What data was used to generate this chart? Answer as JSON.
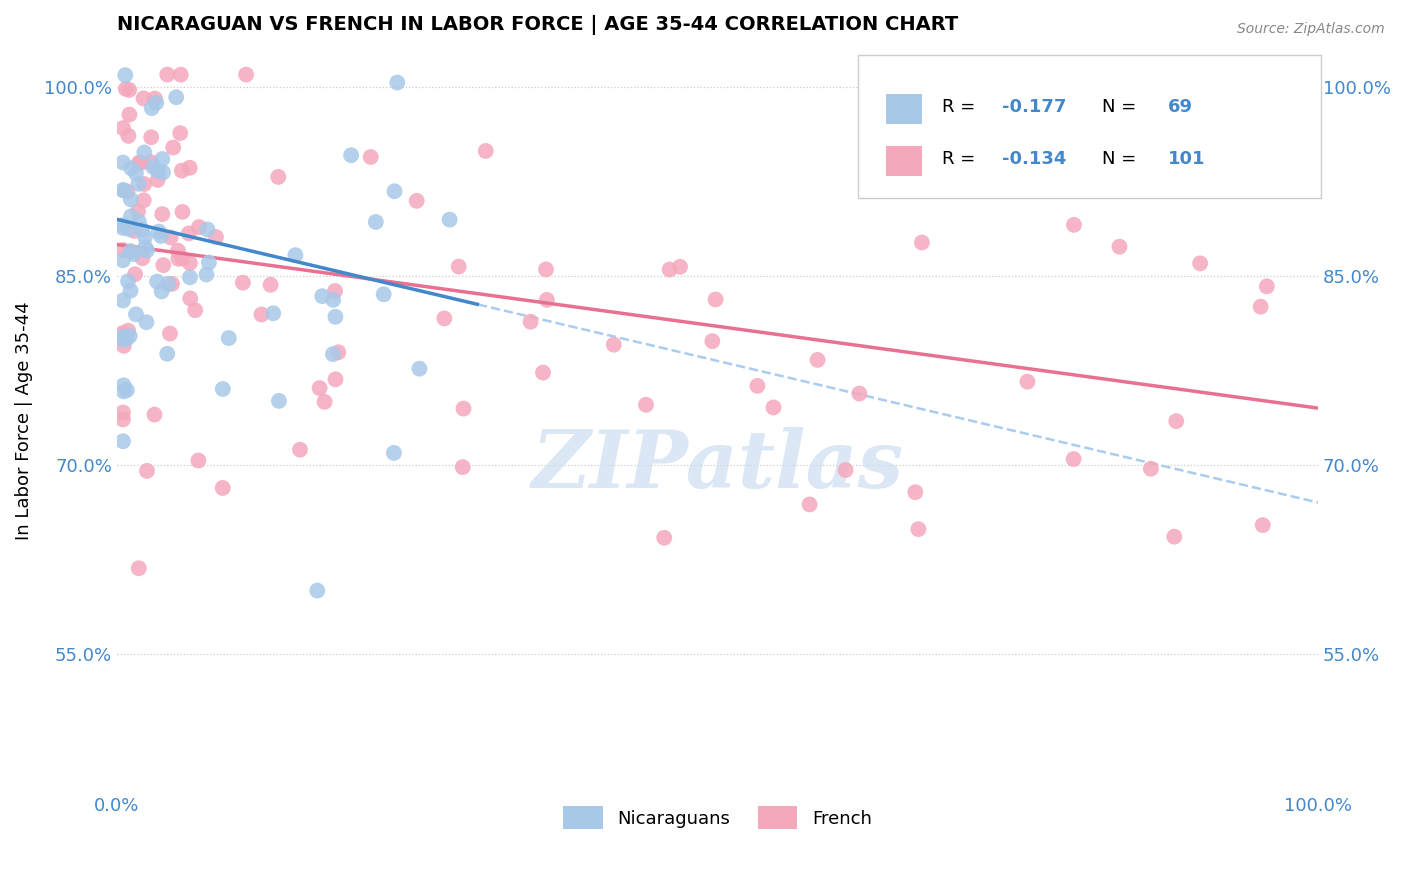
{
  "title": "NICARAGUAN VS FRENCH IN LABOR FORCE | AGE 35-44 CORRELATION CHART",
  "source": "Source: ZipAtlas.com",
  "ylabel": "In Labor Force | Age 35-44",
  "xlim": [
    0.0,
    1.0
  ],
  "ylim": [
    0.44,
    1.03
  ],
  "nic_color": "#a8c8e8",
  "french_color": "#f4a8bc",
  "nic_line_color": "#4488cc",
  "french_line_color": "#e87090",
  "dash_line_color": "#aaccee",
  "grid_color": "#cccccc",
  "background_color": "#ffffff",
  "legend_label_nic": "Nicaraguans",
  "legend_label_french": "French",
  "ytick_labels": [
    "55.0%",
    "70.0%",
    "85.0%",
    "100.0%"
  ],
  "ytick_values": [
    0.55,
    0.7,
    0.85,
    1.0
  ],
  "watermark_text": "ZIPatlas",
  "watermark_color": "#ccddf0",
  "tick_color": "#4488cc",
  "title_fontsize": 14,
  "axis_fontsize": 13,
  "source_text_color": "#888888"
}
